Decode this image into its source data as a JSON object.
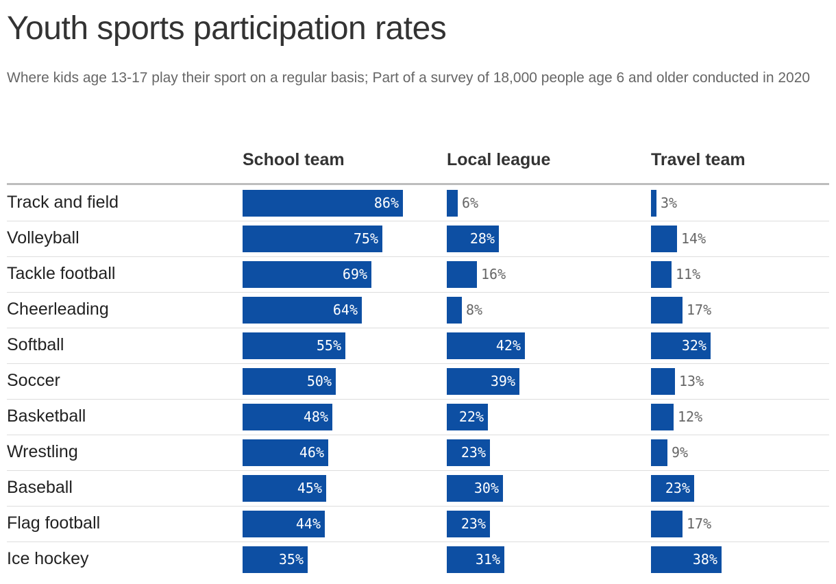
{
  "chart_data": {
    "type": "bar",
    "title": "Youth sports participation rates",
    "subtitle": "Where kids age 13-17 play their sport on a regular basis; Part of a survey of 18,000 people age 6 and older conducted in 2020",
    "categories": [
      "Track and field",
      "Volleyball",
      "Tackle football",
      "Cheerleading",
      "Softball",
      "Soccer",
      "Basketball",
      "Wrestling",
      "Baseball",
      "Flag football",
      "Ice hockey"
    ],
    "series": [
      {
        "name": "School team",
        "values": [
          86,
          75,
          69,
          64,
          55,
          50,
          48,
          46,
          45,
          44,
          35
        ]
      },
      {
        "name": "Local league",
        "values": [
          6,
          28,
          16,
          8,
          42,
          39,
          22,
          23,
          30,
          23,
          31
        ]
      },
      {
        "name": "Travel team",
        "values": [
          3,
          14,
          11,
          17,
          32,
          13,
          12,
          9,
          23,
          17,
          38
        ]
      }
    ],
    "value_suffix": "%",
    "xlim": [
      0,
      100
    ],
    "orientation": "horizontal",
    "grid": false,
    "legend": "none",
    "bar_color": "#0d4fa3"
  }
}
